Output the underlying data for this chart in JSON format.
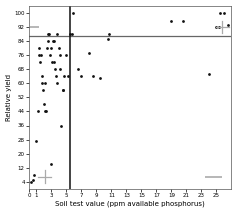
{
  "title": "",
  "xlabel": "Soil test value (ppm available phosphorus)",
  "ylabel": "Relative yield",
  "xlim": [
    0,
    27
  ],
  "ylim": [
    0,
    104
  ],
  "xticks": [
    0,
    1,
    3,
    5,
    7,
    9,
    11,
    13,
    15,
    17,
    19,
    21,
    23,
    25
  ],
  "yticks": [
    4,
    12,
    20,
    28,
    36,
    44,
    52,
    60,
    68,
    76,
    84,
    92,
    100
  ],
  "hline_y": 87,
  "vline_x": 5.5,
  "hline_color": "#666666",
  "vline_color": "#111111",
  "scatter_color": "#111111",
  "scatter_points": [
    [
      0.3,
      4
    ],
    [
      0.5,
      5
    ],
    [
      0.7,
      8
    ],
    [
      1.0,
      27
    ],
    [
      1.2,
      44
    ],
    [
      1.3,
      80
    ],
    [
      1.4,
      76
    ],
    [
      1.5,
      72
    ],
    [
      1.6,
      76
    ],
    [
      1.7,
      64
    ],
    [
      1.8,
      60
    ],
    [
      1.9,
      56
    ],
    [
      2.0,
      48
    ],
    [
      2.1,
      44
    ],
    [
      2.2,
      60
    ],
    [
      2.3,
      44
    ],
    [
      2.4,
      80
    ],
    [
      2.5,
      84
    ],
    [
      2.6,
      88
    ],
    [
      2.7,
      88
    ],
    [
      2.8,
      76
    ],
    [
      2.9,
      14
    ],
    [
      3.0,
      80
    ],
    [
      3.1,
      72
    ],
    [
      3.2,
      84
    ],
    [
      3.3,
      84
    ],
    [
      3.4,
      72
    ],
    [
      3.5,
      68
    ],
    [
      3.6,
      64
    ],
    [
      3.7,
      60
    ],
    [
      3.8,
      88
    ],
    [
      4.0,
      80
    ],
    [
      4.1,
      76
    ],
    [
      4.2,
      68
    ],
    [
      4.3,
      36
    ],
    [
      4.5,
      56
    ],
    [
      4.6,
      56
    ],
    [
      4.7,
      64
    ],
    [
      5.0,
      76
    ],
    [
      5.2,
      64
    ],
    [
      5.5,
      88
    ],
    [
      5.7,
      88
    ],
    [
      5.9,
      100
    ],
    [
      6.5,
      68
    ],
    [
      7.0,
      64
    ],
    [
      8.0,
      77
    ],
    [
      8.5,
      64
    ],
    [
      9.5,
      63
    ],
    [
      10.5,
      85
    ],
    [
      10.7,
      88
    ],
    [
      19.0,
      95
    ],
    [
      20.5,
      95
    ],
    [
      24.0,
      65
    ],
    [
      25.0,
      92
    ],
    [
      25.3,
      92
    ],
    [
      25.5,
      100
    ],
    [
      26.0,
      100
    ],
    [
      26.5,
      93
    ]
  ],
  "cross1_x": 2.1,
  "cross1_y": 7,
  "cross2_x": 25.8,
  "cross2_y": 92,
  "cross_color": "#aaaaaa",
  "dash1_x1": 0.2,
  "dash1_x2": 1.3,
  "dash1_y": 92,
  "dash2_x1": 23.5,
  "dash2_x2": 25.8,
  "dash2_y": 7,
  "dash_color": "#aaaaaa",
  "bg_color": "#ffffff"
}
